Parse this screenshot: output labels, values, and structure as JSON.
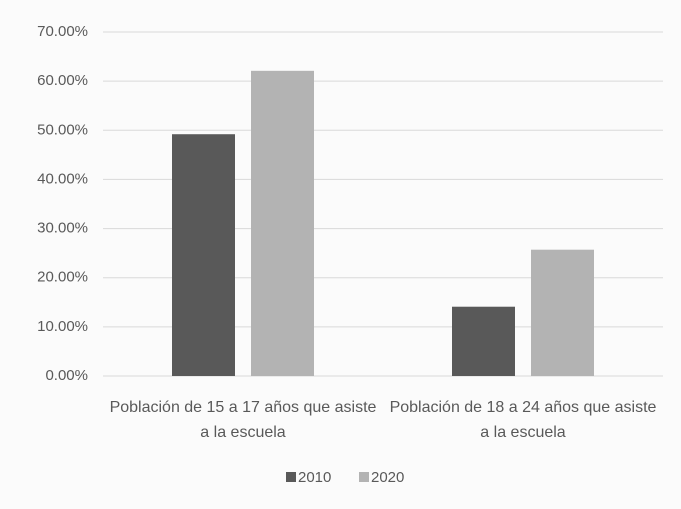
{
  "chart_data": {
    "type": "bar",
    "categories": [
      "Población de 15 a 17 años que asiste a la escuela",
      "Población de 18 a 24 años que asiste a la escuela"
    ],
    "series": [
      {
        "name": "2010",
        "color": "#595959",
        "values": [
          49.2,
          14.1
        ]
      },
      {
        "name": "2020",
        "color": "#b3b3b3",
        "values": [
          62.1,
          25.7
        ]
      }
    ],
    "ylim": [
      0,
      70
    ],
    "yticks": [
      {
        "value": 0,
        "label": "0.00%"
      },
      {
        "value": 10,
        "label": "10.00%"
      },
      {
        "value": 20,
        "label": "20.00%"
      },
      {
        "value": 30,
        "label": "30.00%"
      },
      {
        "value": 40,
        "label": "40.00%"
      },
      {
        "value": 50,
        "label": "50.00%"
      },
      {
        "value": 60,
        "label": "60.00%"
      },
      {
        "value": 70,
        "label": "70.00%"
      }
    ],
    "grid": true,
    "legend": "bottom"
  }
}
